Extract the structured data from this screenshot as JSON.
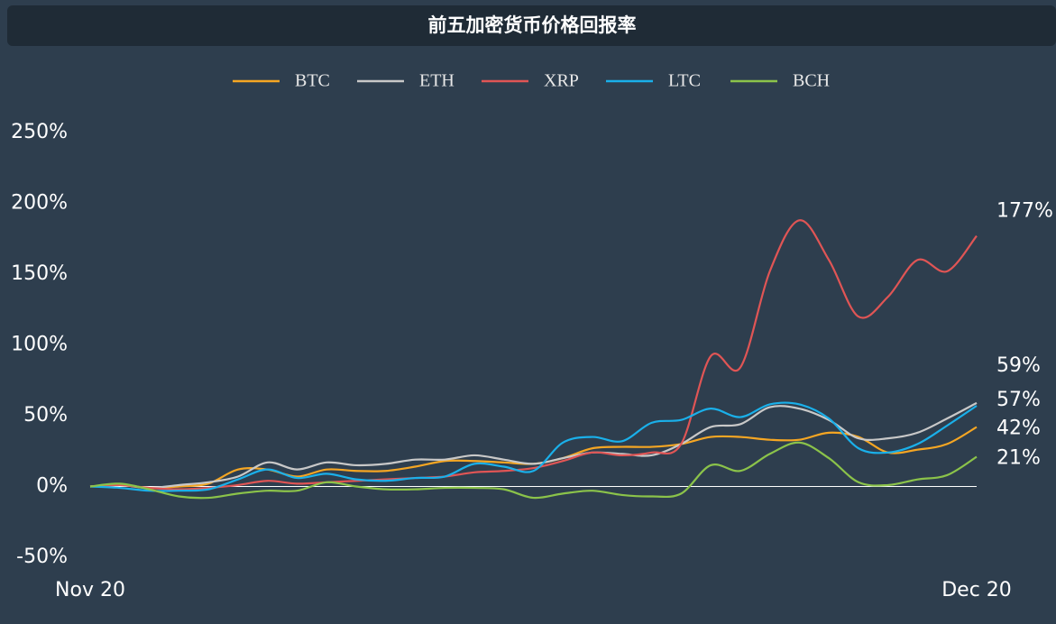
{
  "chart_data": {
    "type": "line",
    "title": "前五加密货币价格回报率",
    "categories": [
      "Nov 20",
      null,
      null,
      null,
      null,
      null,
      null,
      null,
      null,
      null,
      null,
      null,
      null,
      null,
      null,
      null,
      null,
      null,
      null,
      null,
      null,
      null,
      null,
      null,
      null,
      null,
      null,
      null,
      null,
      null,
      "Dec 20"
    ],
    "ylim": [
      -50,
      250
    ],
    "yticks": [
      {
        "value": -50,
        "label": "-50%"
      },
      {
        "value": 0,
        "label": "0%"
      },
      {
        "value": 50,
        "label": "50%"
      },
      {
        "value": 100,
        "label": "100%"
      },
      {
        "value": 150,
        "label": "150%"
      },
      {
        "value": 200,
        "label": "200%"
      },
      {
        "value": 250,
        "label": "250%"
      }
    ],
    "legend": "top",
    "series": [
      {
        "name": "BTC",
        "color": "#f5a623",
        "values": [
          0,
          1,
          -1,
          0,
          2,
          12,
          12,
          7,
          12,
          11,
          11,
          14,
          18,
          18,
          17,
          16,
          20,
          27,
          28,
          28,
          30,
          35,
          35,
          33,
          33,
          38,
          35,
          24,
          26,
          30,
          42
        ],
        "value_labels": [
          null,
          null,
          null,
          null,
          null,
          null,
          null,
          null,
          null,
          null,
          null,
          null,
          null,
          null,
          null,
          null,
          null,
          null,
          null,
          null,
          null,
          null,
          null,
          null,
          null,
          null,
          null,
          null,
          null,
          null,
          "42%"
        ]
      },
      {
        "name": "ETH",
        "color": "#c8c8c8",
        "values": [
          0,
          1,
          -1,
          1,
          3,
          7,
          17,
          12,
          17,
          15,
          16,
          19,
          19,
          22,
          19,
          16,
          20,
          24,
          23,
          22,
          30,
          42,
          44,
          56,
          55,
          47,
          34,
          34,
          38,
          48,
          59
        ],
        "value_labels": [
          null,
          null,
          null,
          null,
          null,
          null,
          null,
          null,
          null,
          null,
          null,
          null,
          null,
          null,
          null,
          null,
          null,
          null,
          null,
          null,
          null,
          null,
          null,
          null,
          null,
          null,
          null,
          null,
          null,
          null,
          "59%"
        ]
      },
      {
        "name": "XRP",
        "color": "#e05555",
        "values": [
          0,
          1,
          -1,
          -2,
          -1,
          1,
          4,
          2,
          3,
          4,
          5,
          6,
          7,
          10,
          11,
          13,
          18,
          24,
          22,
          24,
          30,
          92,
          84,
          152,
          188,
          160,
          120,
          134,
          160,
          152,
          177
        ],
        "value_labels": [
          null,
          null,
          null,
          null,
          null,
          null,
          null,
          null,
          null,
          null,
          null,
          null,
          null,
          null,
          null,
          null,
          null,
          null,
          null,
          null,
          null,
          null,
          null,
          null,
          null,
          null,
          null,
          null,
          null,
          null,
          "177%"
        ]
      },
      {
        "name": "LTC",
        "color": "#1ab0ea",
        "values": [
          0,
          -1,
          -3,
          -3,
          -2,
          5,
          12,
          6,
          9,
          5,
          4,
          6,
          7,
          16,
          14,
          11,
          31,
          35,
          32,
          45,
          47,
          55,
          49,
          58,
          58,
          48,
          27,
          24,
          30,
          43,
          57
        ],
        "value_labels": [
          null,
          null,
          null,
          null,
          null,
          null,
          null,
          null,
          null,
          null,
          null,
          null,
          null,
          null,
          null,
          null,
          null,
          null,
          null,
          null,
          null,
          null,
          null,
          null,
          null,
          null,
          null,
          null,
          null,
          null,
          "57%"
        ]
      },
      {
        "name": "BCH",
        "color": "#8bc34a",
        "values": [
          0,
          2,
          -2,
          -7,
          -8,
          -5,
          -3,
          -3,
          3,
          0,
          -2,
          -2,
          -1,
          -1,
          -2,
          -8,
          -5,
          -3,
          -6,
          -7,
          -5,
          15,
          11,
          23,
          31,
          20,
          3,
          1,
          5,
          8,
          21
        ],
        "value_labels": [
          null,
          null,
          null,
          null,
          null,
          null,
          null,
          null,
          null,
          null,
          null,
          null,
          null,
          null,
          null,
          null,
          null,
          null,
          null,
          null,
          null,
          null,
          null,
          null,
          null,
          null,
          null,
          null,
          null,
          null,
          "21%"
        ]
      }
    ]
  }
}
